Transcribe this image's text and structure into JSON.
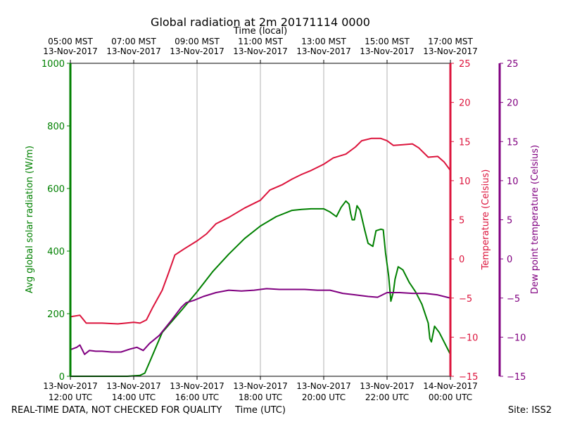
{
  "chart_data": {
    "type": "line",
    "title": "Global radiation at 2m 20171114 0000",
    "top_axis_label": "Time (local)",
    "xlabel": "Time (UTC)",
    "ylabel": "Avg global solar radiation (W/m)",
    "ylabel_right": "Temperature (Celsius)",
    "ylabel_far_right": "Dew point temperature (Celsius)",
    "xlim": [
      12,
      24
    ],
    "ylim": [
      0,
      1000
    ],
    "ylim_right": [
      -15,
      25
    ],
    "ylim_far_right": [
      -15,
      25
    ],
    "grid": "vertical",
    "footer_left": "REAL-TIME DATA, NOT CHECKED FOR QUALITY",
    "footer_right": "Site: ISS2",
    "bottom_ticks": [
      {
        "x": 12,
        "line1": "13-Nov-2017",
        "line2": "12:00 UTC"
      },
      {
        "x": 14,
        "line1": "13-Nov-2017",
        "line2": "14:00 UTC"
      },
      {
        "x": 16,
        "line1": "13-Nov-2017",
        "line2": "16:00 UTC"
      },
      {
        "x": 18,
        "line1": "13-Nov-2017",
        "line2": "18:00 UTC"
      },
      {
        "x": 20,
        "line1": "13-Nov-2017",
        "line2": "20:00 UTC"
      },
      {
        "x": 22,
        "line1": "13-Nov-2017",
        "line2": "22:00 UTC"
      },
      {
        "x": 24,
        "line1": "14-Nov-2017",
        "line2": "00:00 UTC"
      }
    ],
    "top_ticks": [
      {
        "x": 12,
        "line1": "05:00 MST",
        "line2": "13-Nov-2017"
      },
      {
        "x": 14,
        "line1": "07:00 MST",
        "line2": "13-Nov-2017"
      },
      {
        "x": 16,
        "line1": "09:00 MST",
        "line2": "13-Nov-2017"
      },
      {
        "x": 18,
        "line1": "11:00 MST",
        "line2": "13-Nov-2017"
      },
      {
        "x": 20,
        "line1": "13:00 MST",
        "line2": "13-Nov-2017"
      },
      {
        "x": 22,
        "line1": "15:00 MST",
        "line2": "13-Nov-2017"
      },
      {
        "x": 24,
        "line1": "17:00 MST",
        "line2": "13-Nov-2017"
      }
    ],
    "left_ticks": [
      0,
      200,
      400,
      600,
      800,
      1000
    ],
    "right_ticks": [
      -15,
      -10,
      -5,
      0,
      5,
      10,
      15,
      20,
      25
    ],
    "far_right_ticks": [
      -15,
      -10,
      -5,
      0,
      5,
      10,
      15,
      20,
      25
    ],
    "colors": {
      "radiation": "#008000",
      "temperature": "#dc143c",
      "dewpoint": "#800080",
      "grid": "#b0b0b0",
      "axis": "#000000"
    },
    "series": [
      {
        "name": "Avg global solar radiation",
        "axis": "left",
        "color": "#008000",
        "x": [
          12.0,
          13.0,
          13.8,
          14.2,
          14.35,
          14.5,
          14.9,
          15.5,
          16.0,
          16.5,
          17.0,
          17.5,
          18.0,
          18.5,
          19.0,
          19.3,
          19.6,
          20.0,
          20.2,
          20.4,
          20.55,
          20.7,
          20.8,
          20.85,
          20.9,
          20.97,
          21.05,
          21.15,
          21.3,
          21.4,
          21.55,
          21.65,
          21.8,
          21.88,
          21.95,
          22.05,
          22.12,
          22.2,
          22.25,
          22.35,
          22.5,
          22.7,
          22.9,
          23.1,
          23.2,
          23.3,
          23.35,
          23.4,
          23.5,
          23.65,
          23.8,
          24.0
        ],
        "y": [
          0,
          0,
          0,
          3,
          10,
          45,
          140,
          210,
          270,
          335,
          390,
          440,
          480,
          510,
          530,
          533,
          535,
          535,
          525,
          510,
          540,
          560,
          550,
          520,
          500,
          500,
          545,
          530,
          465,
          425,
          415,
          465,
          470,
          468,
          395,
          320,
          240,
          270,
          310,
          350,
          340,
          300,
          270,
          230,
          200,
          170,
          120,
          110,
          160,
          140,
          110,
          70
        ]
      },
      {
        "name": "Temperature",
        "axis": "right",
        "color": "#dc143c",
        "x": [
          12.0,
          12.3,
          12.5,
          13.0,
          13.5,
          14.0,
          14.2,
          14.4,
          14.6,
          14.9,
          15.1,
          15.3,
          15.6,
          16.0,
          16.3,
          16.6,
          17.0,
          17.5,
          18.0,
          18.3,
          18.7,
          19.0,
          19.3,
          19.6,
          20.0,
          20.3,
          20.7,
          21.0,
          21.2,
          21.5,
          21.8,
          22.0,
          22.2,
          22.5,
          22.8,
          23.0,
          23.3,
          23.6,
          23.8,
          24.0
        ],
        "y": [
          -7.4,
          -7.2,
          -8.2,
          -8.2,
          -8.3,
          -8.1,
          -8.2,
          -7.8,
          -6.2,
          -4.0,
          -1.8,
          0.5,
          1.3,
          2.3,
          3.2,
          4.5,
          5.3,
          6.5,
          7.5,
          8.8,
          9.5,
          10.2,
          10.8,
          11.3,
          12.1,
          12.9,
          13.4,
          14.3,
          15.1,
          15.4,
          15.4,
          15.1,
          14.5,
          14.6,
          14.7,
          14.2,
          13.0,
          13.1,
          12.4,
          11.3
        ]
      },
      {
        "name": "Dew point temperature",
        "axis": "far_right",
        "color": "#800080",
        "x": [
          12.0,
          12.2,
          12.3,
          12.45,
          12.6,
          12.8,
          13.0,
          13.3,
          13.6,
          13.9,
          14.1,
          14.3,
          14.5,
          14.8,
          15.2,
          15.5,
          15.65,
          15.9,
          16.2,
          16.6,
          17.0,
          17.4,
          17.8,
          18.2,
          18.6,
          19.0,
          19.4,
          19.8,
          20.2,
          20.6,
          21.0,
          21.4,
          21.7,
          22.0,
          22.4,
          22.8,
          23.2,
          23.6,
          24.0
        ],
        "y": [
          -11.6,
          -11.3,
          -11.0,
          -12.2,
          -11.7,
          -11.8,
          -11.8,
          -11.9,
          -11.9,
          -11.5,
          -11.3,
          -11.7,
          -10.8,
          -9.8,
          -7.8,
          -6.2,
          -5.6,
          -5.3,
          -4.8,
          -4.3,
          -4.0,
          -4.1,
          -4.0,
          -3.8,
          -3.9,
          -3.9,
          -3.9,
          -4.0,
          -4.0,
          -4.4,
          -4.6,
          -4.8,
          -4.9,
          -4.3,
          -4.3,
          -4.4,
          -4.4,
          -4.6,
          -5.0
        ]
      }
    ]
  }
}
